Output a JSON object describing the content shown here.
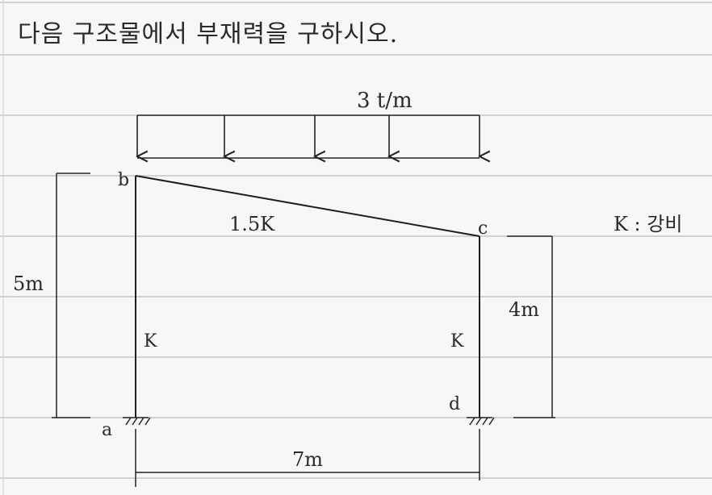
{
  "problem": {
    "statement": "다음 구조물에서 부재력을 구하시오."
  },
  "loads": {
    "udl_label": "3 t/m"
  },
  "members": {
    "beam_stiffness": "1.5K",
    "left_column_stiffness": "K",
    "right_column_stiffness": "K"
  },
  "joints": {
    "a": "a",
    "b": "b",
    "c": "c",
    "d": "d"
  },
  "dimensions": {
    "left_height": "5m",
    "right_height": "4m",
    "span": "7m"
  },
  "legend": {
    "k_note": "K : 강비"
  }
}
